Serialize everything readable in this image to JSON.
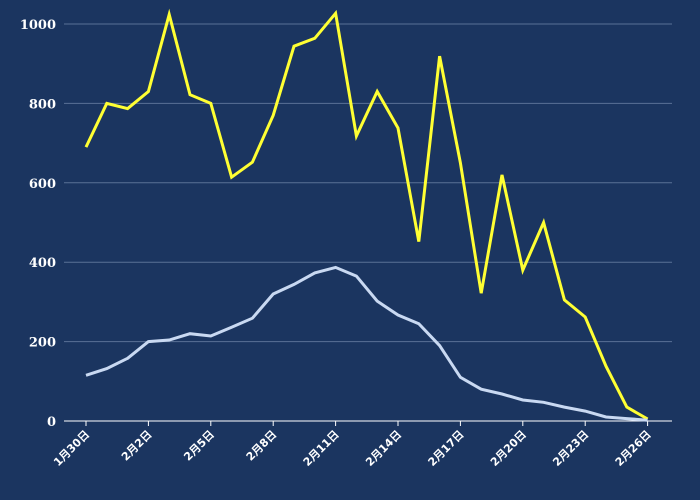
{
  "chart_data": {
    "type": "line",
    "x": [
      "1月30日",
      "1月31日",
      "2月1日",
      "2月2日",
      "2月3日",
      "2月4日",
      "2月5日",
      "2月6日",
      "2月7日",
      "2月8日",
      "2月9日",
      "2月10日",
      "2月11日",
      "2月12日",
      "2月13日",
      "2月14日",
      "2月15日",
      "2月16日",
      "2月17日",
      "2月18日",
      "2月19日",
      "2月20日",
      "2月21日",
      "2月22日",
      "2月23日",
      "2月24日",
      "2月25日",
      "2月26日",
      "2月27日"
    ],
    "x_tick_labels": [
      "1月30日",
      "2月2日",
      "2月5日",
      "2月8日",
      "2月11日",
      "2月14日",
      "2月17日",
      "2月20日",
      "2月23日",
      "2月26日"
    ],
    "series": [
      {
        "name": "",
        "color": "#ffff33",
        "values": [
          690,
          800,
          787,
          830,
          1024,
          822,
          800,
          614,
          652,
          770,
          944,
          964,
          1027,
          718,
          830,
          738,
          452,
          919,
          650,
          322,
          620,
          380,
          500,
          305,
          262,
          138,
          35,
          5,
          null
        ]
      },
      {
        "name": "",
        "color": "#c9d9f2",
        "values": [
          115,
          132,
          158,
          200,
          204,
          220,
          214,
          236,
          259,
          320,
          344,
          373,
          387,
          365,
          302,
          267,
          245,
          190,
          110,
          80,
          68,
          53,
          47,
          35,
          25,
          10,
          6,
          2,
          null
        ]
      }
    ],
    "ylim": [
      0,
      1000
    ],
    "yticks": [
      0,
      200,
      400,
      600,
      800,
      1000
    ],
    "grid": true,
    "legend_placement": "bottom"
  }
}
